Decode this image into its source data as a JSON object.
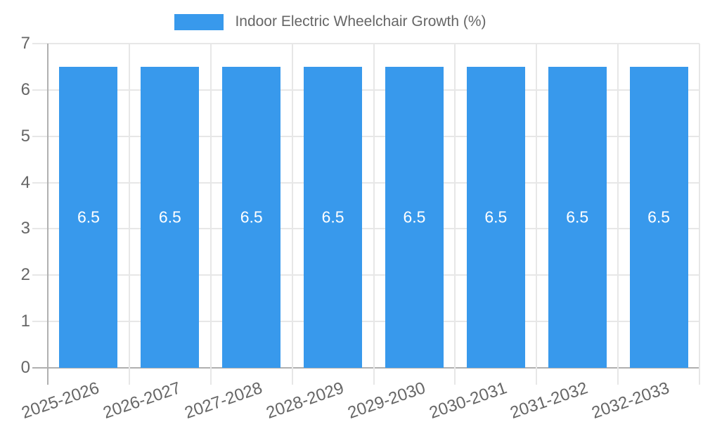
{
  "chart_data": {
    "type": "bar",
    "title": "Indoor Electric Wheelchair Growth (%)",
    "legend": {
      "position": "top",
      "entries": [
        {
          "label": "Indoor Electric Wheelchair Growth (%)",
          "color": "#3899ec"
        }
      ]
    },
    "categories": [
      "2025-2026",
      "2026-2027",
      "2027-2028",
      "2028-2029",
      "2029-2030",
      "2030-2031",
      "2031-2032",
      "2032-2033"
    ],
    "series": [
      {
        "name": "Indoor Electric Wheelchair Growth (%)",
        "values": [
          6.5,
          6.5,
          6.5,
          6.5,
          6.5,
          6.5,
          6.5,
          6.5
        ]
      }
    ],
    "data_labels": [
      "6.5",
      "6.5",
      "6.5",
      "6.5",
      "6.5",
      "6.5",
      "6.5",
      "6.5"
    ],
    "xlabel": "",
    "ylabel": "",
    "ylim": [
      0,
      7
    ],
    "yticks": [
      "0",
      "1",
      "2",
      "3",
      "4",
      "5",
      "6",
      "7"
    ],
    "grid": true,
    "x_label_rotation_deg": -19,
    "colors": {
      "bar": "#3899ec",
      "grid_line": "#e7e7e7",
      "axis_line": "#b0b0b0",
      "tick_text": "#666666",
      "value_label_text": "#ffffff",
      "background": "#ffffff"
    }
  }
}
